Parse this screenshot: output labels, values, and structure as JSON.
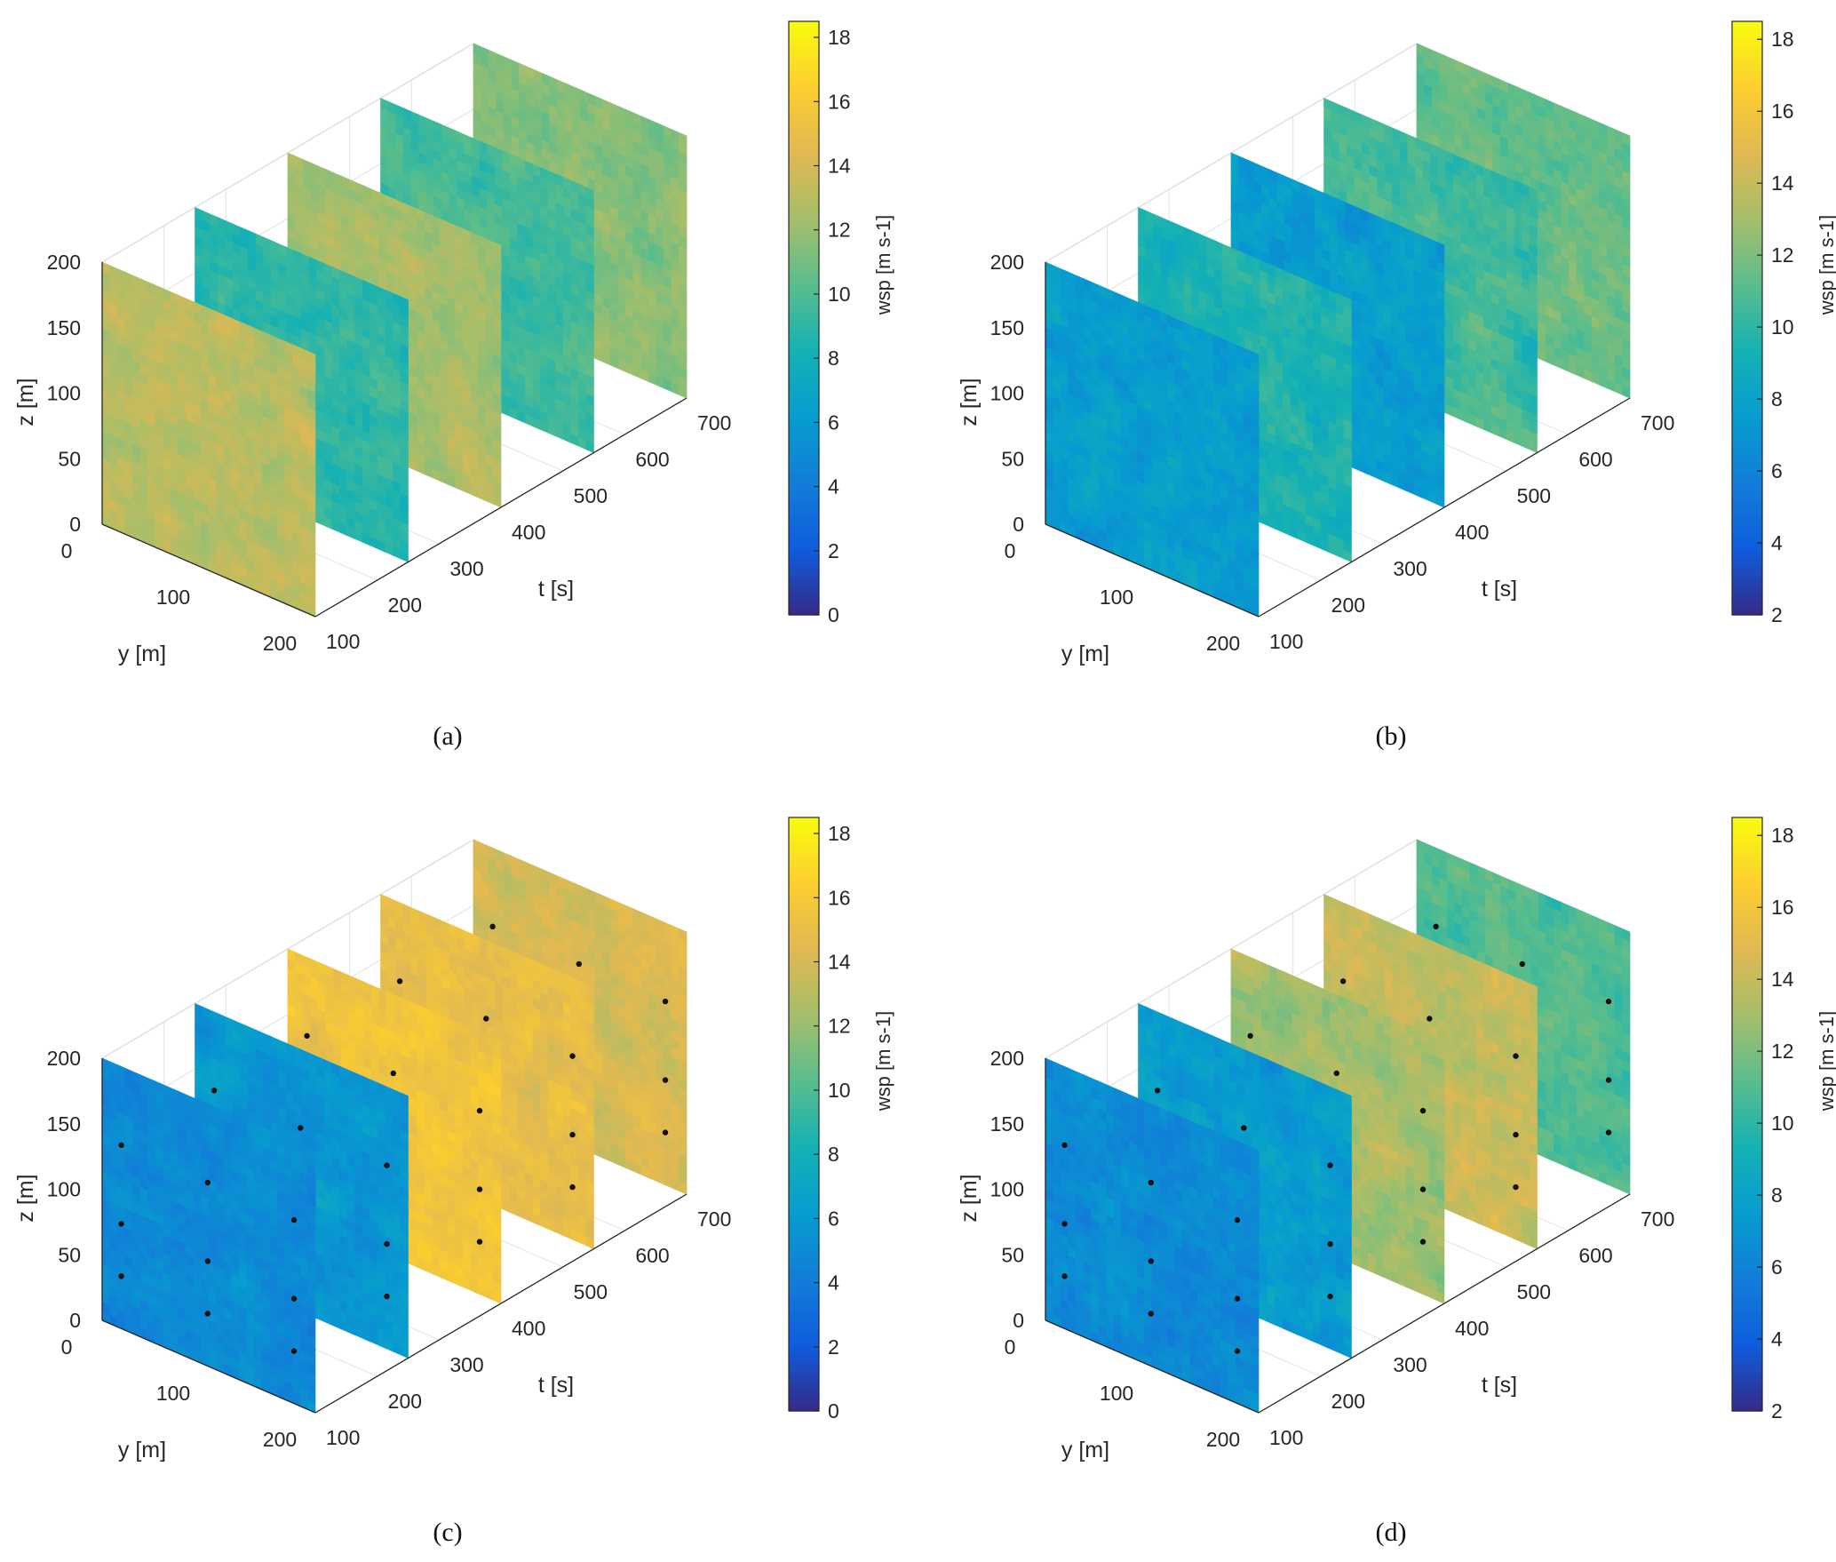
{
  "chart_data": [
    {
      "type": "heatmap",
      "panel_label": "(a)",
      "z_axis": {
        "label": "z [m]",
        "ticks": [
          "0",
          "50",
          "100",
          "150",
          "200"
        ],
        "range": [
          0,
          200
        ]
      },
      "y_axis": {
        "label": "y [m]",
        "ticks": [
          "0",
          "100",
          "200"
        ],
        "range": [
          0,
          200
        ]
      },
      "t_axis": {
        "label": "t [s]",
        "ticks": [
          "100",
          "200",
          "300",
          "400",
          "500",
          "600",
          "700"
        ],
        "range": [
          100,
          700
        ]
      },
      "slice_times": [
        100,
        250,
        400,
        550,
        700
      ],
      "slice_mean_wsp": [
        13.0,
        9.0,
        12.5,
        9.5,
        11.5
      ],
      "colorbar": {
        "label": "wsp [m s-1]",
        "ticks": [
          "0",
          "2",
          "4",
          "6",
          "8",
          "10",
          "12",
          "14",
          "16",
          "18"
        ],
        "range": [
          0,
          18.5
        ]
      },
      "markers": false,
      "grid": true
    },
    {
      "type": "heatmap",
      "panel_label": "(b)",
      "z_axis": {
        "label": "z [m]",
        "ticks": [
          "0",
          "50",
          "100",
          "150",
          "200"
        ],
        "range": [
          0,
          200
        ]
      },
      "y_axis": {
        "label": "y [m]",
        "ticks": [
          "0",
          "100",
          "200"
        ],
        "range": [
          0,
          200
        ]
      },
      "t_axis": {
        "label": "t [s]",
        "ticks": [
          "100",
          "200",
          "300",
          "400",
          "500",
          "600",
          "700"
        ],
        "range": [
          100,
          700
        ]
      },
      "slice_times": [
        100,
        250,
        400,
        550,
        700
      ],
      "slice_mean_wsp": [
        7.5,
        9.5,
        7.5,
        10.5,
        11.5
      ],
      "colorbar": {
        "label": "wsp [m s-1]",
        "ticks": [
          "2",
          "4",
          "6",
          "8",
          "10",
          "12",
          "14",
          "16",
          "18"
        ],
        "range": [
          2,
          18.5
        ]
      },
      "markers": false,
      "grid": true
    },
    {
      "type": "heatmap",
      "panel_label": "(c)",
      "z_axis": {
        "label": "z [m]",
        "ticks": [
          "0",
          "50",
          "100",
          "150",
          "200"
        ],
        "range": [
          0,
          200
        ]
      },
      "y_axis": {
        "label": "y [m]",
        "ticks": [
          "0",
          "100",
          "200"
        ],
        "range": [
          0,
          200
        ]
      },
      "t_axis": {
        "label": "t [s]",
        "ticks": [
          "100",
          "200",
          "300",
          "400",
          "500",
          "600",
          "700"
        ],
        "range": [
          100,
          700
        ]
      },
      "slice_times": [
        100,
        250,
        400,
        550,
        700
      ],
      "slice_mean_wsp": [
        5.0,
        5.8,
        15.5,
        15.0,
        14.0
      ],
      "colorbar": {
        "label": "wsp [m s-1]",
        "ticks": [
          "0",
          "2",
          "4",
          "6",
          "8",
          "10",
          "12",
          "14",
          "16",
          "18"
        ],
        "range": [
          0,
          18.5
        ]
      },
      "markers": true,
      "grid": true
    },
    {
      "type": "heatmap",
      "panel_label": "(d)",
      "z_axis": {
        "label": "z [m]",
        "ticks": [
          "0",
          "50",
          "100",
          "150",
          "200"
        ],
        "range": [
          0,
          200
        ]
      },
      "y_axis": {
        "label": "y [m]",
        "ticks": [
          "0",
          "100",
          "200"
        ],
        "range": [
          0,
          200
        ]
      },
      "t_axis": {
        "label": "t [s]",
        "ticks": [
          "100",
          "200",
          "300",
          "400",
          "500",
          "600",
          "700"
        ],
        "range": [
          100,
          700
        ]
      },
      "slice_times": [
        100,
        250,
        400,
        550,
        700
      ],
      "slice_mean_wsp": [
        6.5,
        7.5,
        13.0,
        14.0,
        11.0
      ],
      "colorbar": {
        "label": "wsp [m s-1]",
        "ticks": [
          "2",
          "4",
          "6",
          "8",
          "10",
          "12",
          "14",
          "16",
          "18"
        ],
        "range": [
          2,
          18.5
        ]
      },
      "markers": true,
      "grid": true
    }
  ]
}
